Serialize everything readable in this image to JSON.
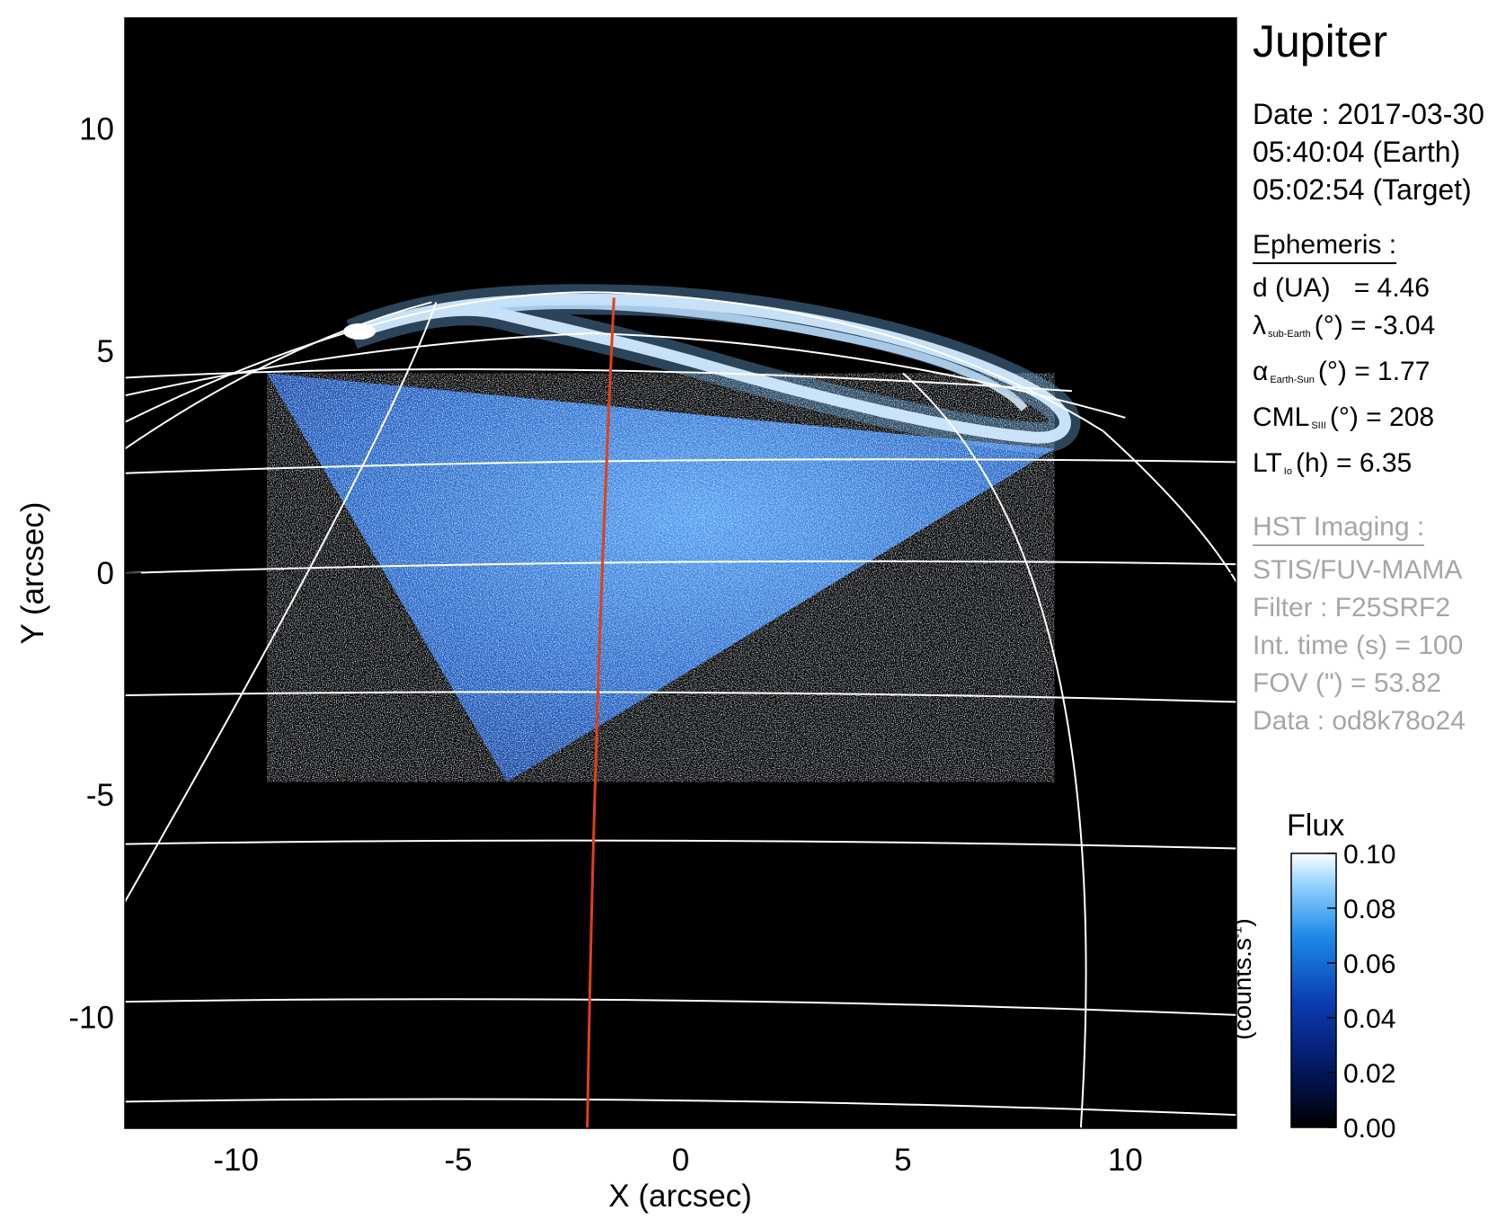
{
  "info": {
    "title": "Jupiter",
    "date_line": "Date : 2017-03-30",
    "earth_time": "05:40:04 (Earth)",
    "target_time": "05:02:54 (Target)"
  },
  "ephemeris": {
    "header": "Ephemeris :",
    "d_label": "d (UA)",
    "d_value": "= 4.46",
    "lambda_sym": "λ",
    "lambda_sub": "sub-Earth",
    "lambda_value": "(°) = -3.04",
    "alpha_sym": "α",
    "alpha_sub": "Earth-Sun",
    "alpha_value": "(°) = 1.77",
    "cml_label": "CML",
    "cml_sub": "SIII",
    "cml_value": "(°) = 208",
    "lt_label": "LT",
    "lt_sub": "Io",
    "lt_value": "(h) = 6.35"
  },
  "hst": {
    "header": "HST Imaging :",
    "instrument": "STIS/FUV-MAMA",
    "filter": "Filter : F25SRF2",
    "int_time": "Int. time (s) = 100",
    "fov": "FOV (\") = 53.82",
    "data": "Data : od8k78o24"
  },
  "colorbar": {
    "title": "Flux",
    "unit_main": "(counts.s",
    "unit_sup": "-1",
    "unit_end": ")",
    "ticks": [
      "0.10",
      "0.08",
      "0.06",
      "0.04",
      "0.02",
      "0.00"
    ],
    "range": [
      0.0,
      0.1
    ]
  },
  "colors": {
    "background": "#000000",
    "emission_low": "#0a2a8a",
    "emission_mid": "#2f7fe0",
    "emission_high": "#ffffff",
    "grid": "#ffffff",
    "meridian": "#e0401a"
  },
  "chart_data": {
    "type": "heatmap",
    "title": "",
    "xlabel": "X (arcsec)",
    "ylabel": "Y (arcsec)",
    "xlim": [
      -12.5,
      12.5
    ],
    "ylim": [
      -12.5,
      12.5
    ],
    "xticks": [
      -10,
      -5,
      0,
      5,
      10
    ],
    "yticks": [
      10,
      5,
      0,
      -5,
      -10
    ],
    "observed_region_corners": [
      [
        -9.3,
        4.5
      ],
      [
        8.4,
        2.8
      ],
      [
        -3.9,
        -4.7
      ]
    ],
    "auroral_oval": {
      "main_emission_center": [
        1.8,
        5.2
      ],
      "peak_flux": 0.1
    },
    "red_meridian": {
      "x_top": -1.5,
      "y_top": 6.2,
      "x_bottom": -2.1,
      "y_bottom": -12.5
    },
    "latitude_lines": [
      {
        "left_y": -11.9,
        "right_y": -12.2
      },
      {
        "left_y": -9.65,
        "right_y": -9.95
      },
      {
        "left_y": -6.1,
        "right_y": -6.2
      },
      {
        "left_y": -2.75,
        "right_y": -2.9
      },
      {
        "left_y": 0.0,
        "right_y": 0.2
      },
      {
        "left_y": 2.25,
        "right_y": 2.5
      }
    ],
    "longitude_lines": [
      {
        "x_top": -5.5,
        "y_top": 6.1,
        "x_bottom": -12.5,
        "y_bottom": -7.4
      },
      {
        "x_top": 5.0,
        "y_top": 4.5,
        "x_bottom": 9.0,
        "y_bottom": -12.5
      }
    ]
  }
}
